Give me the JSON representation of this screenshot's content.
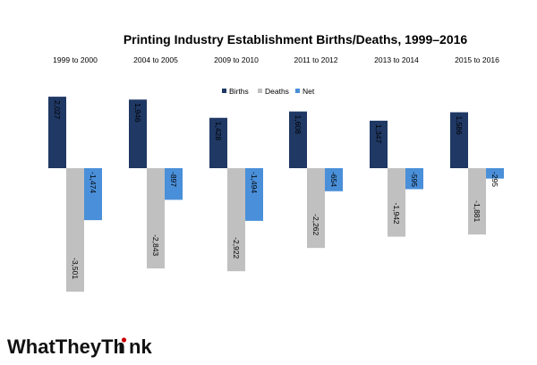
{
  "chart_data": {
    "type": "bar",
    "title": "Printing Industry Establishment Births/Deaths, 1999–2016",
    "categories": [
      "1999 to 2000",
      "2004 to 2005",
      "2009 to 2010",
      "2011 to 2012",
      "2013 to 2014",
      "2015 to 2016"
    ],
    "series": [
      {
        "name": "Births",
        "color": "#1f3864",
        "values": [
          2027,
          1946,
          1428,
          1608,
          1347,
          1586
        ],
        "labels": [
          "2,027",
          "1,946",
          "1,428",
          "1,608",
          "1,347",
          "1,586"
        ]
      },
      {
        "name": "Deaths",
        "color": "#c0c0c0",
        "values": [
          -3501,
          -2843,
          -2922,
          -2262,
          -1942,
          -1881
        ],
        "labels": [
          "-3,501",
          "-2,843",
          "-2,922",
          "-2,262",
          "-1,942",
          "-1,881"
        ]
      },
      {
        "name": "Net",
        "color": "#4a8fd9",
        "values": [
          -1474,
          -897,
          -1494,
          -654,
          -595,
          -295
        ],
        "labels": [
          "-1,474",
          "-897",
          "-1,494",
          "-654",
          "-595",
          "-295"
        ]
      }
    ],
    "legend_position": "top-center",
    "axes_visible": false,
    "grid": false
  },
  "logo": {
    "text": "WhatTheyThink",
    "accent_color": "#cc0000"
  }
}
